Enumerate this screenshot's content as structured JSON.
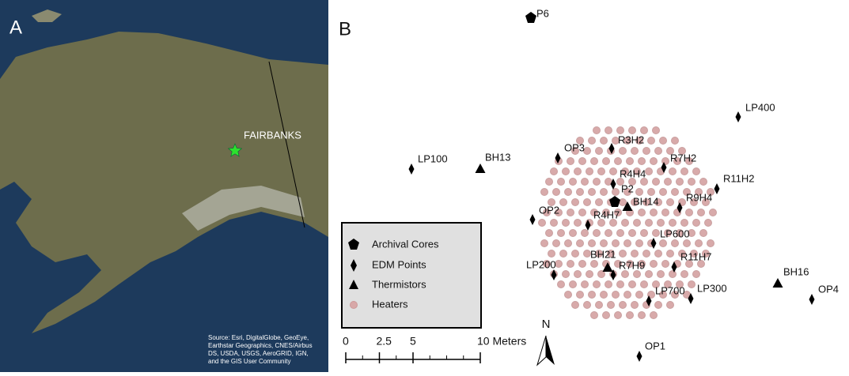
{
  "panel_a": {
    "label": "A",
    "city": "FAIRBANKS",
    "source": [
      "Source: Esri, DigitalGlobe, GeoEye,",
      "Earthstar Geographics, CNES/Airbus",
      "DS, USDA, USGS, AeroGRID, IGN,",
      "and the GIS User Community"
    ]
  },
  "panel_b": {
    "label": "B",
    "archival_cores": [
      "P6",
      "P2"
    ],
    "edm_points": [
      "LP400",
      "OP3",
      "R3H2",
      "R7H2",
      "R11H2",
      "LP100",
      "R4H4",
      "R9H4",
      "OP2",
      "R4H7",
      "LP600",
      "R11H7",
      "LP200",
      "R7H9",
      "LP700",
      "LP300",
      "OP4",
      "OP1"
    ],
    "thermistors": [
      "BH13",
      "BH14",
      "BH21",
      "BH16"
    ]
  },
  "legend": {
    "items": [
      "Archival Cores",
      "EDM Points",
      "Thermistors",
      "Heaters"
    ]
  },
  "scale_bar": {
    "ticks": [
      0,
      2.5,
      5,
      {
        "value": 10,
        "label": "10 Meters"
      }
    ]
  },
  "north_arrow": "N"
}
